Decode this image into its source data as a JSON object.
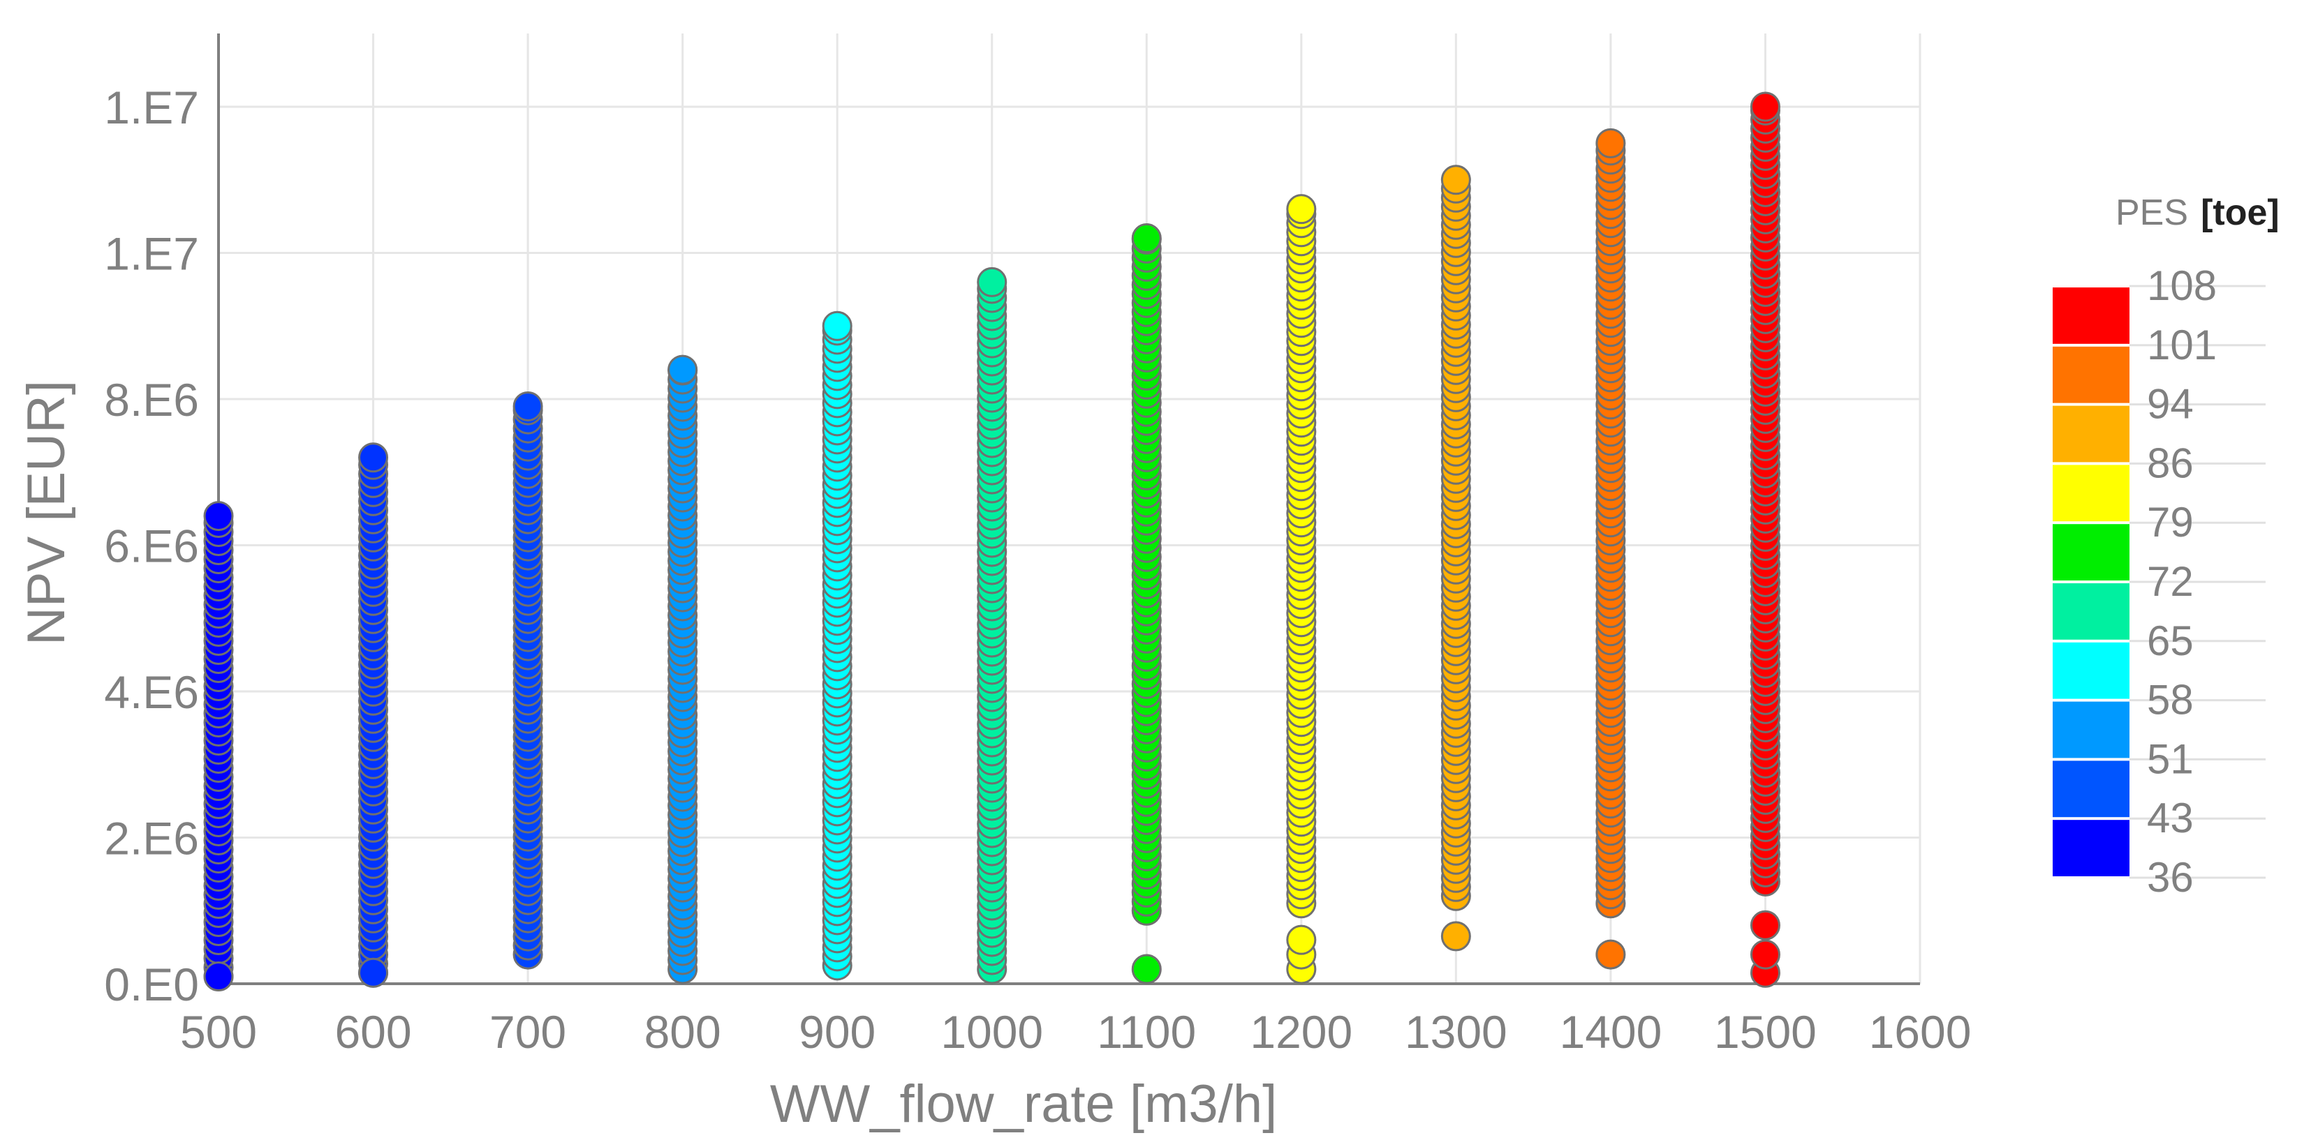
{
  "chart_data": {
    "type": "scatter",
    "xlabel": "WW_flow_rate [m3/h]",
    "ylabel": "NPV [EUR]",
    "xlim": [
      500,
      1600
    ],
    "ylim": [
      0,
      13000000
    ],
    "x_ticks": [
      500,
      600,
      700,
      800,
      900,
      1000,
      1100,
      1200,
      1300,
      1400,
      1500,
      1600
    ],
    "y_ticks": [
      {
        "value": 0,
        "label": "0.E0"
      },
      {
        "value": 2000000,
        "label": "2.E6"
      },
      {
        "value": 4000000,
        "label": "4.E6"
      },
      {
        "value": 6000000,
        "label": "6.E6"
      },
      {
        "value": 8000000,
        "label": "8.E6"
      },
      {
        "value": 10000000,
        "label": "1.E7"
      },
      {
        "value": 12000000,
        "label": "1.E7"
      }
    ],
    "grid": true,
    "legend": {
      "title": "PES",
      "unit": "[toe]",
      "placement": "right",
      "labels": [
        "108",
        "101",
        "94",
        "86",
        "79",
        "72",
        "65",
        "58",
        "51",
        "43",
        "36"
      ],
      "colors": [
        "#ff0000",
        "#ff7300",
        "#ffb000",
        "#ffff00",
        "#00ee00",
        "#00f0a0",
        "#00ffff",
        "#0099ff",
        "#0055ff",
        "#0000ff"
      ]
    },
    "marker_edge_color": "#707070",
    "series": [
      {
        "x": 500,
        "color": "#0000ff",
        "y_min": 100000,
        "y_max": 6400000,
        "outliers": [
          100000
        ]
      },
      {
        "x": 600,
        "color": "#0033ff",
        "y_min": 150000,
        "y_max": 7200000,
        "outliers": [
          150000
        ]
      },
      {
        "x": 700,
        "color": "#0044ff",
        "y_min": 400000,
        "y_max": 7900000,
        "outliers": []
      },
      {
        "x": 800,
        "color": "#0099ff",
        "y_min": 200000,
        "y_max": 8400000,
        "outliers": []
      },
      {
        "x": 900,
        "color": "#00ffff",
        "y_min": 250000,
        "y_max": 9000000,
        "outliers": []
      },
      {
        "x": 1000,
        "color": "#00f0a0",
        "y_min": 200000,
        "y_max": 9600000,
        "outliers": []
      },
      {
        "x": 1100,
        "color": "#00ee00",
        "y_min": 1000000,
        "y_max": 10200000,
        "outliers": [
          200000
        ]
      },
      {
        "x": 1200,
        "color": "#ffff00",
        "y_min": 1100000,
        "y_max": 10600000,
        "outliers": [
          200000,
          400000,
          600000
        ]
      },
      {
        "x": 1300,
        "color": "#ffb000",
        "y_min": 1200000,
        "y_max": 11000000,
        "outliers": [
          650000
        ]
      },
      {
        "x": 1400,
        "color": "#ff7300",
        "y_min": 1100000,
        "y_max": 11500000,
        "outliers": [
          400000
        ]
      },
      {
        "x": 1500,
        "color": "#ff0000",
        "y_min": 1400000,
        "y_max": 12000000,
        "outliers": [
          150000,
          400000,
          800000
        ]
      }
    ]
  }
}
